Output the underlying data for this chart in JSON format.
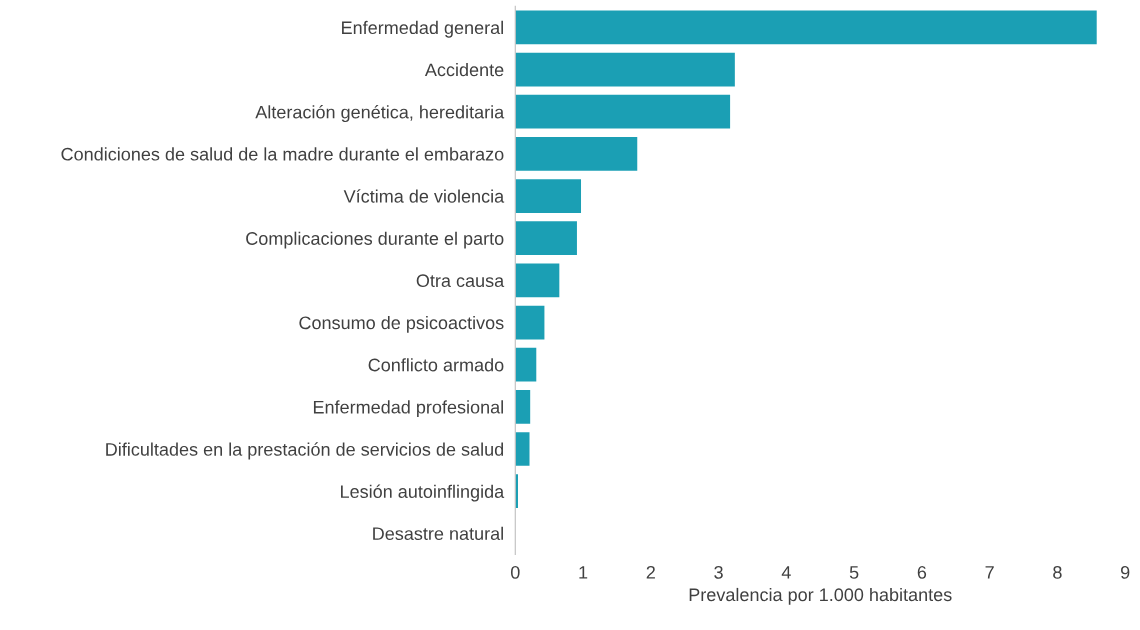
{
  "chart_data": {
    "type": "bar",
    "orientation": "horizontal",
    "xlabel": "Prevalencia por 1.000 habitantes",
    "categories": [
      "Enfermedad general",
      "Accidente",
      "Alteración genética, hereditaria",
      "Condiciones de salud de la madre durante el embarazo",
      "Víctima de violencia",
      "Complicaciones durante el parto",
      "Otra causa",
      "Consumo de psicoactivos",
      "Conflicto armado",
      "Enfermedad profesional",
      "Dificultades en la prestación de servicios de salud",
      "Lesión autoinflingida",
      "Desastre natural"
    ],
    "values": [
      8.58,
      3.24,
      3.17,
      1.8,
      0.97,
      0.91,
      0.65,
      0.43,
      0.31,
      0.22,
      0.21,
      0.04,
      null
    ],
    "color": "#1b9fb4",
    "xlim": [
      0,
      9
    ],
    "xticks": [
      0,
      1,
      2,
      3,
      4,
      5,
      6,
      7,
      8,
      9
    ],
    "grid": false,
    "legend": false
  }
}
